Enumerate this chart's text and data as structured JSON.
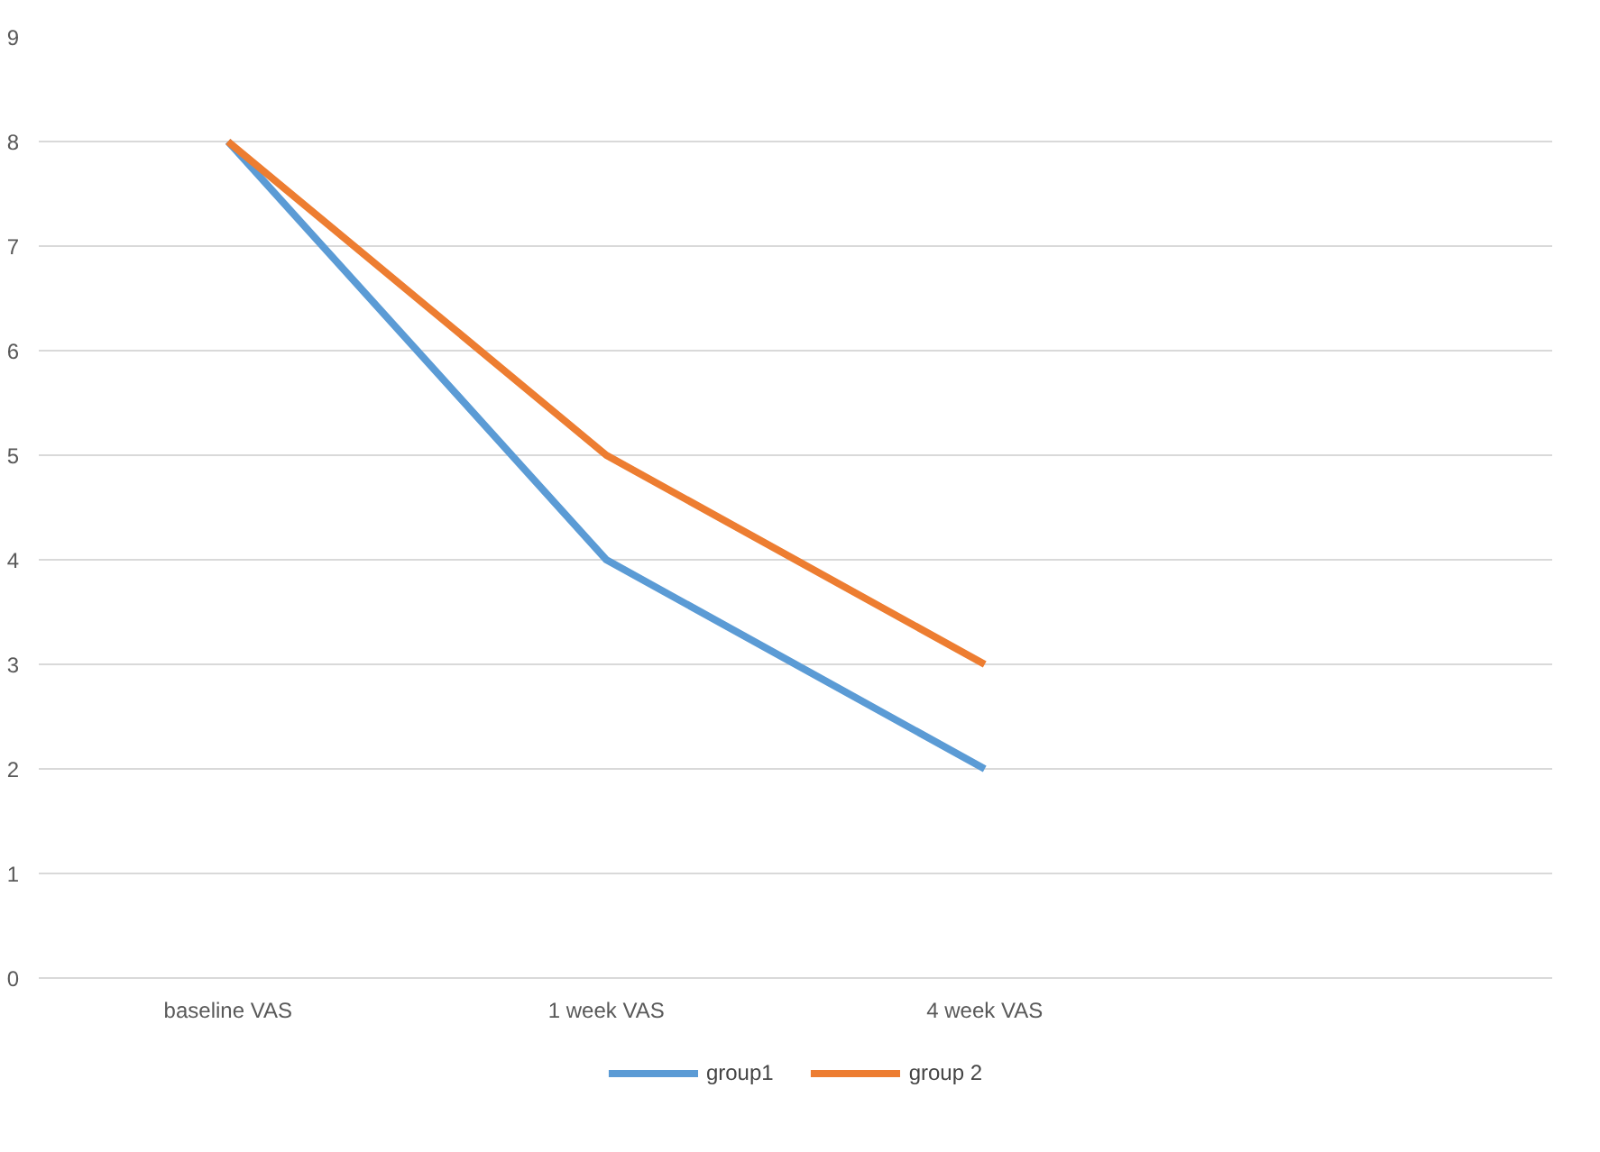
{
  "chart_data": {
    "type": "line",
    "categories": [
      "baseline VAS",
      "1 week VAS",
      "4 week VAS",
      null
    ],
    "series": [
      {
        "name": "group1",
        "color": "#5b9bd5",
        "values": [
          8,
          4,
          2,
          null
        ]
      },
      {
        "name": "group 2",
        "color": "#ed7d31",
        "values": [
          8,
          5,
          3,
          null
        ]
      }
    ],
    "ylim": [
      0,
      9
    ],
    "yticks": [
      0,
      1,
      2,
      3,
      4,
      5,
      6,
      7,
      8,
      9
    ],
    "grid": "y",
    "legend": "bottom",
    "marker": "none",
    "line_style": "solid"
  }
}
